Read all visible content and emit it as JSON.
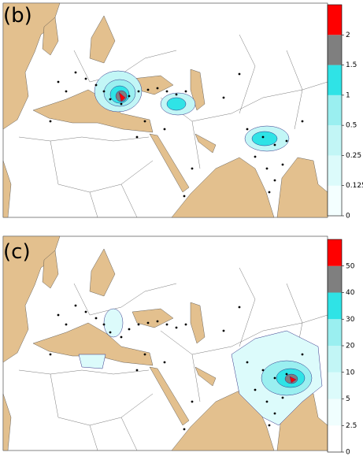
{
  "panels": [
    {
      "label": "(b)",
      "colorbar": {
        "ticks": [
          0,
          0.125,
          0.25,
          0.5,
          1,
          1.5,
          2
        ],
        "colors": [
          "#f4ffff",
          "#dcfbfb",
          "#c2f6f6",
          "#9aeff0",
          "#2fe3e6",
          "#7f7f7f",
          "#ff0000"
        ]
      }
    },
    {
      "label": "(c)",
      "colorbar": {
        "ticks": [
          0,
          2.5,
          5,
          10,
          20,
          30,
          40,
          50
        ],
        "colors": [
          "#ffffff",
          "#f0fefe",
          "#dcfbfb",
          "#c2f6f6",
          "#9aeff0",
          "#2fe3e6",
          "#7f7f7f",
          "#ff0000"
        ]
      }
    }
  ]
}
